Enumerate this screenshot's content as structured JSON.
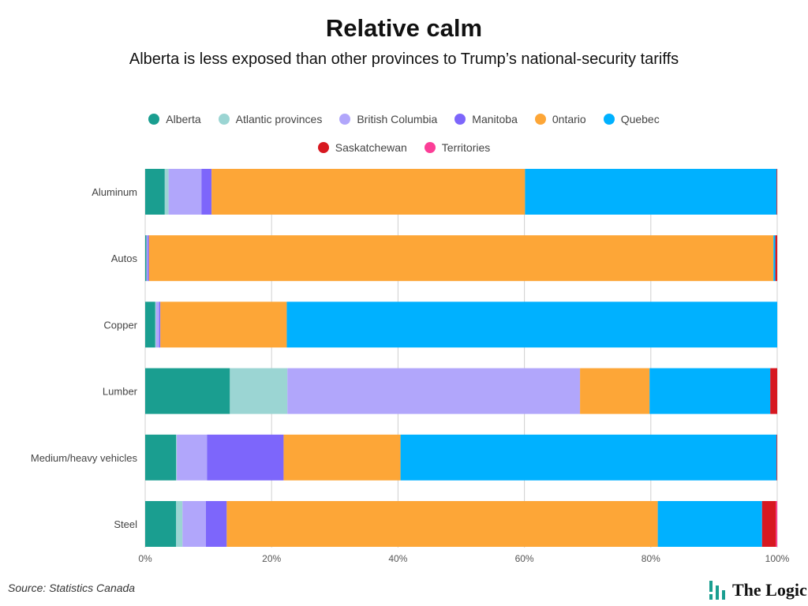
{
  "chart_data": {
    "type": "bar",
    "orientation": "horizontal",
    "stacked": "percent",
    "title": "Relative calm",
    "subtitle": "Alberta is less exposed than other provinces to Trump’s national-security tariffs",
    "categories": [
      "Aluminum",
      "Autos",
      "Copper",
      "Lumber",
      "Medium/heavy vehicles",
      "Steel"
    ],
    "series": [
      {
        "name": "Alberta",
        "color": "#1a9e90",
        "values": [
          3.1,
          0.2,
          1.6,
          13.4,
          4.9,
          4.9
        ]
      },
      {
        "name": "Atlantic provinces",
        "color": "#9bd5d3",
        "values": [
          0.6,
          0.0,
          0.1,
          9.1,
          0.1,
          1.0
        ]
      },
      {
        "name": "British Columbia",
        "color": "#b1a6fb",
        "values": [
          5.2,
          0.2,
          0.5,
          46.3,
          4.8,
          3.7
        ]
      },
      {
        "name": "Manitoba",
        "color": "#7d66fb",
        "values": [
          1.6,
          0.2,
          0.2,
          0.0,
          12.1,
          3.3
        ]
      },
      {
        "name": "0ntario",
        "color": "#fda637",
        "values": [
          49.6,
          98.8,
          20.0,
          11.0,
          18.5,
          68.2
        ]
      },
      {
        "name": "Quebec",
        "color": "#00b1ff",
        "values": [
          39.8,
          0.3,
          77.6,
          19.1,
          59.5,
          16.5
        ]
      },
      {
        "name": "Saskatchewan",
        "color": "#d71820",
        "values": [
          0.1,
          0.3,
          0.0,
          1.1,
          0.1,
          2.2
        ]
      },
      {
        "name": "Territories",
        "color": "#fb3e97",
        "values": [
          0.0,
          0.0,
          0.0,
          0.0,
          0.0,
          0.2
        ]
      }
    ],
    "xlim": [
      0,
      100
    ],
    "xticks": [
      "0%",
      "20%",
      "40%",
      "60%",
      "80%",
      "100%"
    ],
    "grid": true,
    "legend_position": "top"
  },
  "footer": {
    "source": "Source: Statistics Canada",
    "logo": "The Logic"
  }
}
